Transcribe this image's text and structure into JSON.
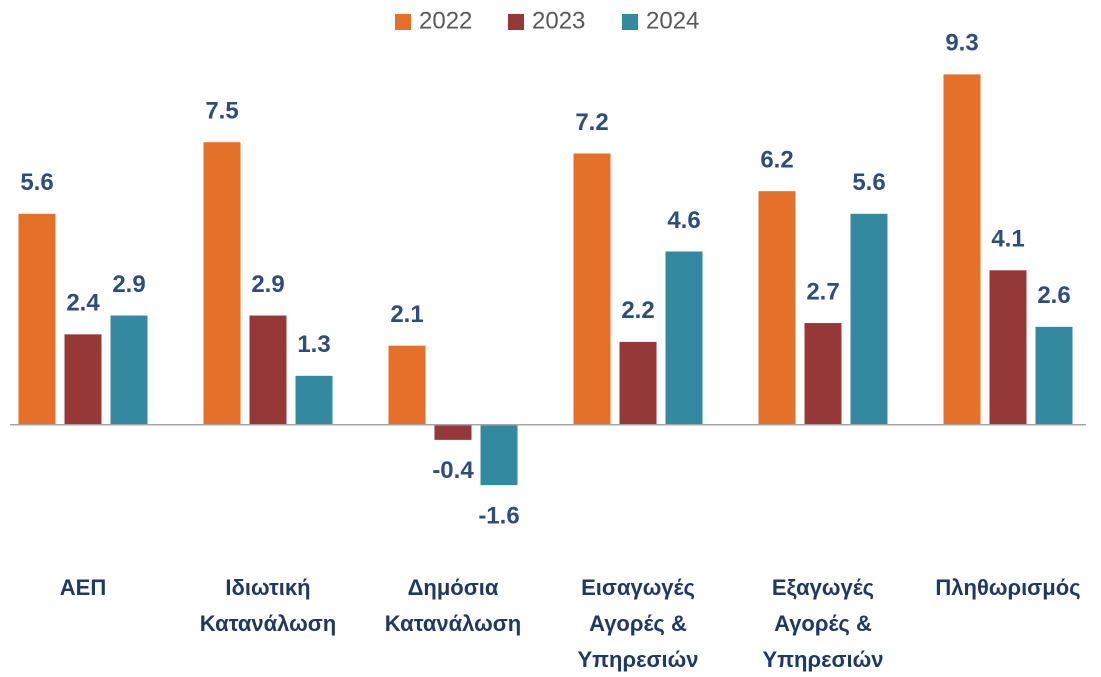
{
  "chart_data": {
    "type": "bar",
    "categories": [
      "ΑΕΠ",
      "Ιδιωτική Κατανάλωση",
      "Δημόσια Κατανάλωση",
      "Εισαγωγές Αγορές & Υπηρεσιών",
      "Εξαγωγές Αγορές & Υπηρεσιών",
      "Πληθωρισμός"
    ],
    "series": [
      {
        "name": "2022",
        "color": "#e4702a",
        "values": [
          5.6,
          7.5,
          2.1,
          7.2,
          6.2,
          9.3
        ]
      },
      {
        "name": "2023",
        "color": "#973838",
        "values": [
          2.4,
          2.9,
          -0.4,
          2.2,
          2.7,
          4.1
        ]
      },
      {
        "name": "2024",
        "color": "#338aa0",
        "values": [
          2.9,
          1.3,
          -1.6,
          4.6,
          5.6,
          2.6
        ]
      }
    ],
    "ylim": [
      -2.5,
      10
    ],
    "legend": "top"
  }
}
